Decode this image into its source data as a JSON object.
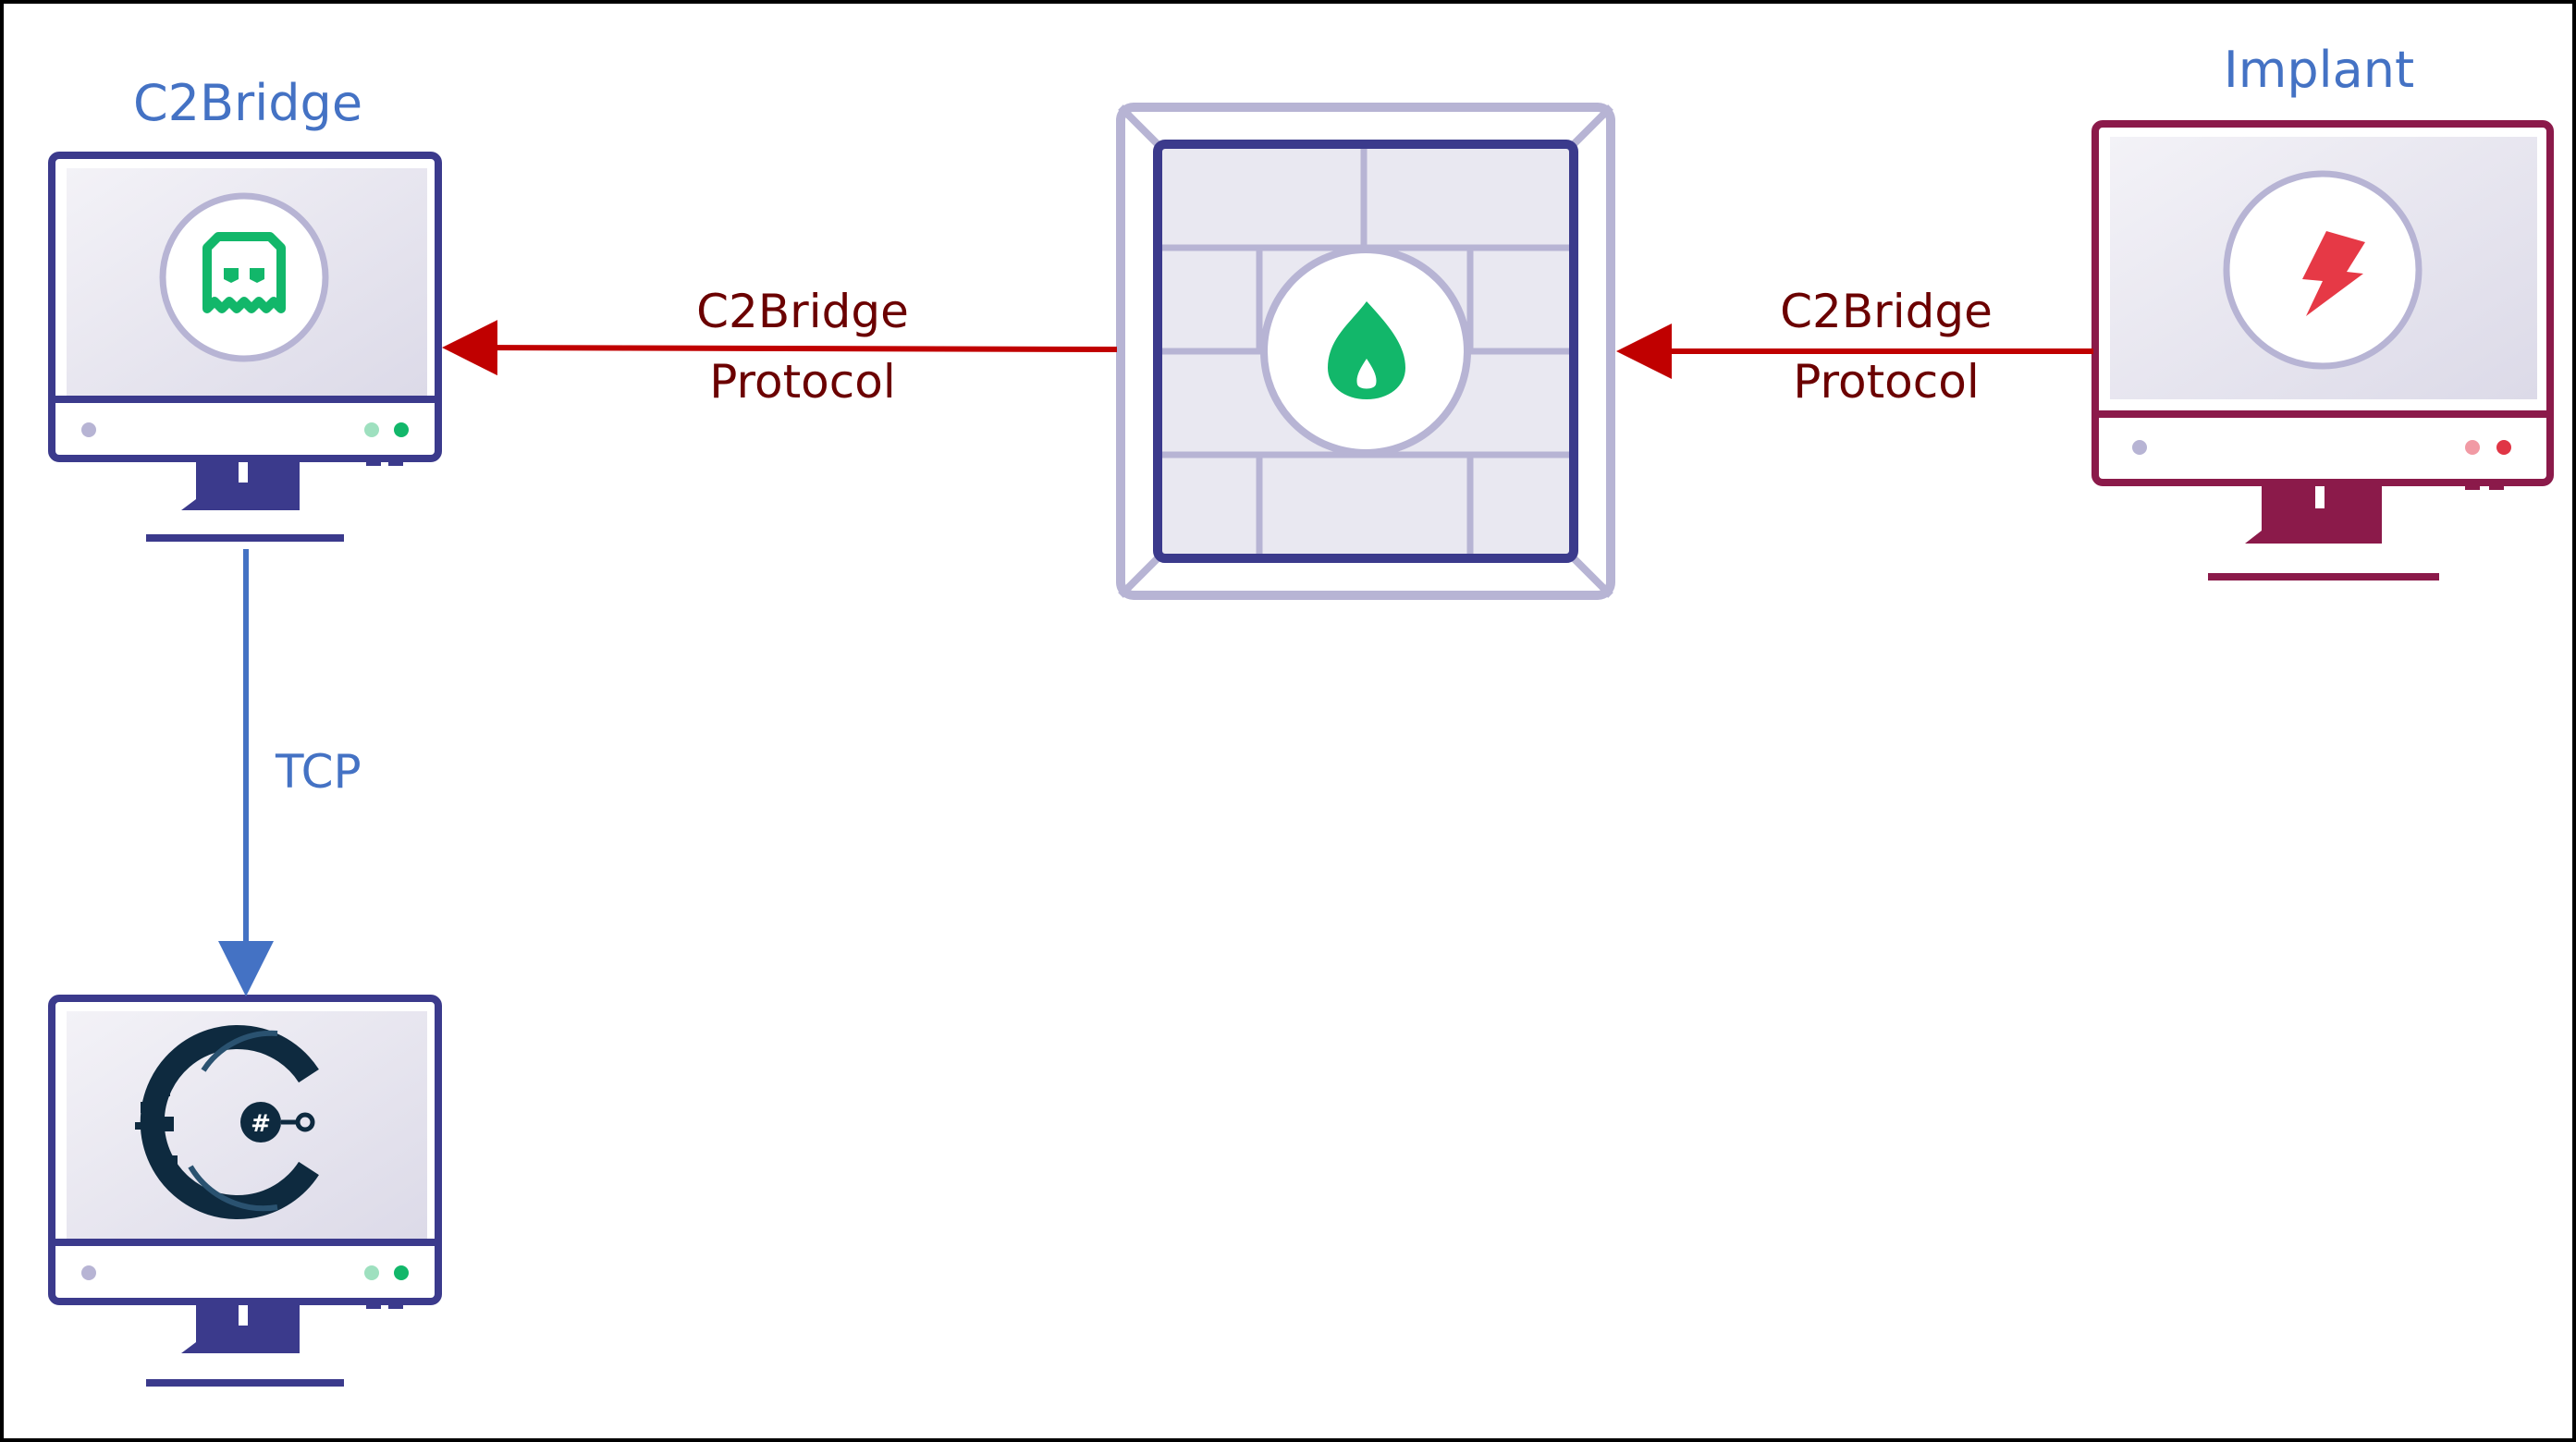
{
  "nodes": {
    "c2bridge_server": {
      "title": "C2Bridge",
      "icon": "ghost-icon"
    },
    "firewall": {
      "icon": "flame-icon"
    },
    "implant": {
      "title": "Implant",
      "icon": "lightning-icon"
    },
    "c2_server": {
      "icon": "c2-logo-icon"
    }
  },
  "edges": {
    "firewall_to_c2bridge": {
      "line1": "C2Bridge",
      "line2": "Protocol"
    },
    "implant_to_firewall": {
      "line1": "C2Bridge",
      "line2": "Protocol"
    },
    "c2bridge_to_c2": {
      "label": "TCP"
    }
  },
  "colors": {
    "navy": "#3b3a8c",
    "maroon": "#8b1a4a",
    "arrow_red": "#c00000",
    "label_dark_red": "#6b0000",
    "label_blue": "#4472c4",
    "green": "#12b76a",
    "lavender": "#b7b4d4",
    "screen_fill": "#eceaf3"
  }
}
